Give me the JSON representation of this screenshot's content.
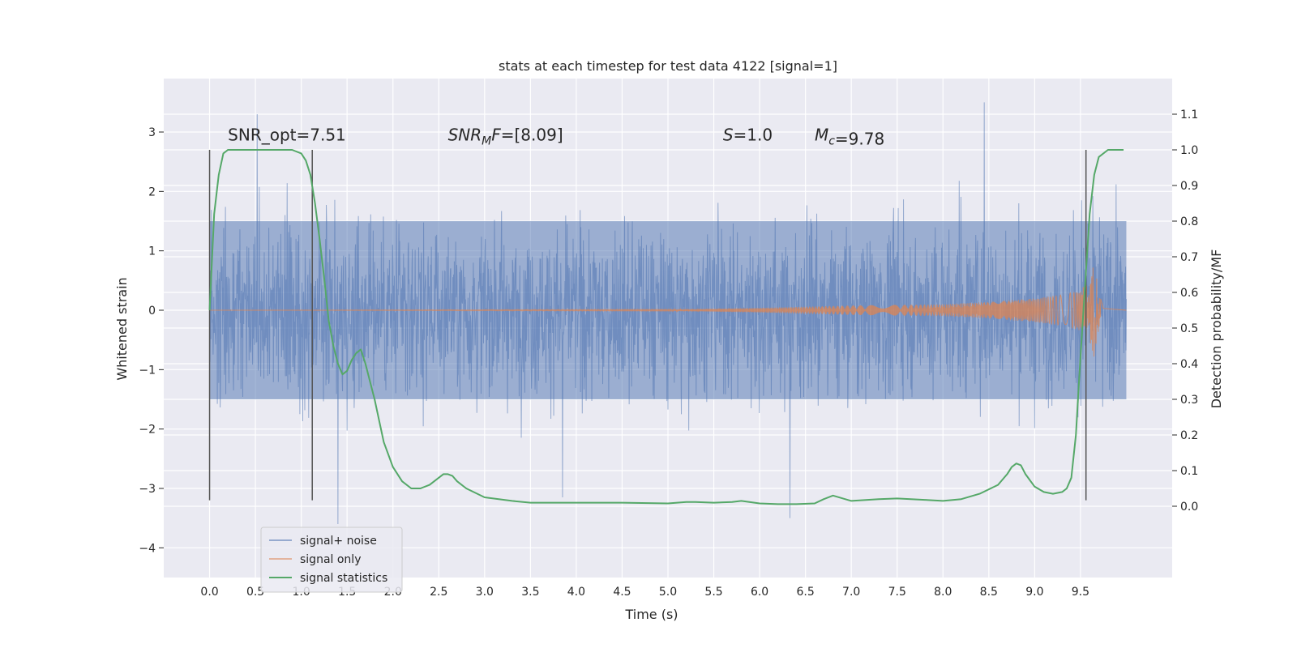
{
  "chart_data": {
    "type": "line",
    "title": "stats at each timestep for test data 4122 [signal=1]",
    "xlabel": "Time (s)",
    "ylabel": "Whitened strain",
    "y2label": "Detection probability/MF",
    "xlim": [
      -0.5,
      10.5
    ],
    "ylim": [
      -4.5,
      3.9
    ],
    "y2lim": [
      -0.2,
      1.2
    ],
    "xticks": [
      0.0,
      0.5,
      1.0,
      1.5,
      2.0,
      2.5,
      3.0,
      3.5,
      4.0,
      4.5,
      5.0,
      5.5,
      6.0,
      6.5,
      7.0,
      7.5,
      8.0,
      8.5,
      9.0,
      9.5
    ],
    "xtick_labels": [
      "0.0",
      "0.5",
      "1.0",
      "1.5",
      "2.0",
      "2.5",
      "3.0",
      "3.5",
      "4.0",
      "4.5",
      "5.0",
      "5.5",
      "6.0",
      "6.5",
      "7.0",
      "7.5",
      "8.0",
      "8.5",
      "9.0",
      "9.5"
    ],
    "yticks": [
      3,
      2,
      1,
      0,
      -1,
      -2,
      -3,
      -4
    ],
    "ytick_labels": [
      "3",
      "2",
      "1",
      "0",
      "−1",
      "−2",
      "−3",
      "−4"
    ],
    "y2ticks": [
      1.1,
      1.0,
      0.9,
      0.8,
      0.7,
      0.6,
      0.5,
      0.4,
      0.3,
      0.2,
      0.1,
      0.0
    ],
    "y2tick_labels": [
      "1.1",
      "1.0",
      "0.9",
      "0.8",
      "0.7",
      "0.6",
      "0.5",
      "0.4",
      "0.3",
      "0.2",
      "0.1",
      "0.0"
    ],
    "grid": true,
    "legend_position": "lower-left",
    "annotations": [
      {
        "text": "SNR_opt=7.51",
        "x": 0.2,
        "y": 2.8
      },
      {
        "text": "=[8.09]",
        "math_base": "SNR",
        "math_sub": "M",
        "math_tail": "F",
        "x": 2.6,
        "y": 2.8
      },
      {
        "text": "=1.0",
        "math_base": "S",
        "x": 5.6,
        "y": 2.8
      },
      {
        "text": "=9.78",
        "math_base": "M",
        "math_sub": "c",
        "x": 6.6,
        "y": 2.8
      }
    ],
    "vlines": [
      {
        "x": 0.0,
        "y": [
          -3.2,
          2.7
        ]
      },
      {
        "x": 1.12,
        "y": [
          -3.2,
          2.7
        ]
      },
      {
        "x": 9.56,
        "y": [
          -3.2,
          2.7
        ]
      }
    ],
    "series": [
      {
        "name": "signal+ noise",
        "color": "#4c72b0",
        "kind": "noise",
        "x_range": [
          0.0,
          10.0
        ],
        "typical_extent": [
          -1.5,
          1.5
        ],
        "extremes": [
          {
            "x": 0.52,
            "y": 3.3
          },
          {
            "x": 1.4,
            "y": -3.6
          },
          {
            "x": 3.85,
            "y": -3.15
          },
          {
            "x": 6.33,
            "y": -3.5
          },
          {
            "x": 8.45,
            "y": 3.5
          }
        ]
      },
      {
        "name": "signal only",
        "color": "#dd8452",
        "kind": "chirp",
        "x_range": [
          0.0,
          10.0
        ],
        "envelope": {
          "x": [
            0.0,
            5.0,
            6.0,
            7.0,
            8.0,
            8.5,
            9.0,
            9.3,
            9.5,
            9.6,
            9.65,
            9.7,
            9.75,
            10.0
          ],
          "amp": [
            0.0,
            0.01,
            0.04,
            0.08,
            0.1,
            0.14,
            0.2,
            0.26,
            0.34,
            0.5,
            0.8,
            0.3,
            0.03,
            0.0
          ]
        }
      },
      {
        "name": "signal statistics",
        "color": "#55a868",
        "axis": "right",
        "x": [
          0.0,
          0.05,
          0.1,
          0.15,
          0.2,
          0.3,
          0.5,
          0.7,
          0.9,
          1.0,
          1.05,
          1.1,
          1.15,
          1.2,
          1.25,
          1.3,
          1.35,
          1.4,
          1.45,
          1.5,
          1.55,
          1.6,
          1.65,
          1.7,
          1.8,
          1.9,
          2.0,
          2.1,
          2.2,
          2.3,
          2.4,
          2.5,
          2.55,
          2.6,
          2.65,
          2.7,
          2.8,
          3.0,
          3.3,
          3.5,
          4.0,
          4.5,
          5.0,
          5.2,
          5.3,
          5.5,
          5.7,
          5.8,
          6.0,
          6.2,
          6.4,
          6.6,
          6.7,
          6.8,
          7.0,
          7.3,
          7.5,
          7.8,
          8.0,
          8.2,
          8.4,
          8.6,
          8.7,
          8.75,
          8.8,
          8.85,
          8.9,
          9.0,
          9.1,
          9.2,
          9.3,
          9.35,
          9.4,
          9.45,
          9.5,
          9.55,
          9.6,
          9.65,
          9.7,
          9.8,
          9.9,
          9.97
        ],
        "values": [
          0.55,
          0.82,
          0.93,
          0.99,
          1.0,
          1.0,
          1.0,
          1.0,
          1.0,
          0.99,
          0.97,
          0.93,
          0.85,
          0.75,
          0.64,
          0.52,
          0.45,
          0.4,
          0.37,
          0.38,
          0.41,
          0.43,
          0.44,
          0.4,
          0.3,
          0.18,
          0.11,
          0.07,
          0.05,
          0.05,
          0.06,
          0.08,
          0.09,
          0.09,
          0.085,
          0.07,
          0.05,
          0.025,
          0.015,
          0.01,
          0.01,
          0.01,
          0.008,
          0.012,
          0.012,
          0.01,
          0.012,
          0.015,
          0.008,
          0.006,
          0.006,
          0.008,
          0.02,
          0.03,
          0.015,
          0.02,
          0.022,
          0.018,
          0.015,
          0.02,
          0.035,
          0.06,
          0.09,
          0.11,
          0.12,
          0.115,
          0.09,
          0.055,
          0.04,
          0.035,
          0.04,
          0.05,
          0.08,
          0.2,
          0.42,
          0.62,
          0.82,
          0.93,
          0.98,
          1.0,
          1.0,
          1.0
        ]
      }
    ]
  }
}
